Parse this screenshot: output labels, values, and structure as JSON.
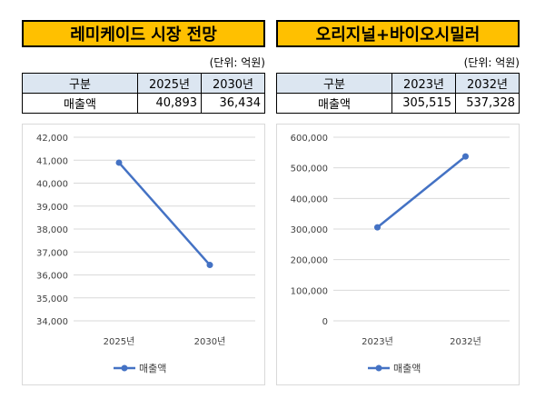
{
  "panels": [
    {
      "title": "레미케이드 시장 전망",
      "unit": "(단위: 억원)",
      "table": {
        "header": [
          "구분",
          "2025년",
          "2030년"
        ],
        "row": [
          "매출액",
          "40,893",
          "36,434"
        ]
      }
    },
    {
      "title": "오리지널+바이오시밀러",
      "unit": "(단위: 억원)",
      "table": {
        "header": [
          "구분",
          "2023년",
          "2032년"
        ],
        "row": [
          "매출액",
          "305,515",
          "537,328"
        ]
      }
    }
  ],
  "chart_data": [
    {
      "type": "line",
      "categories": [
        "2025년",
        "2030년"
      ],
      "series": [
        {
          "name": "매출액",
          "values": [
            40893,
            36434
          ]
        }
      ],
      "ylim": [
        34000,
        42000
      ],
      "yticks": [
        "34,000",
        "35,000",
        "36,000",
        "37,000",
        "38,000",
        "39,000",
        "40,000",
        "41,000",
        "42,000"
      ],
      "grid": true,
      "legend": "bottom",
      "color": "#4472c4"
    },
    {
      "type": "line",
      "categories": [
        "2023년",
        "2032년"
      ],
      "series": [
        {
          "name": "매출액",
          "values": [
            305515,
            537328
          ]
        }
      ],
      "ylim": [
        0,
        600000
      ],
      "yticks": [
        "0",
        "100,000",
        "200,000",
        "300,000",
        "400,000",
        "500,000",
        "600,000"
      ],
      "grid": true,
      "legend": "bottom",
      "color": "#4472c4"
    }
  ]
}
